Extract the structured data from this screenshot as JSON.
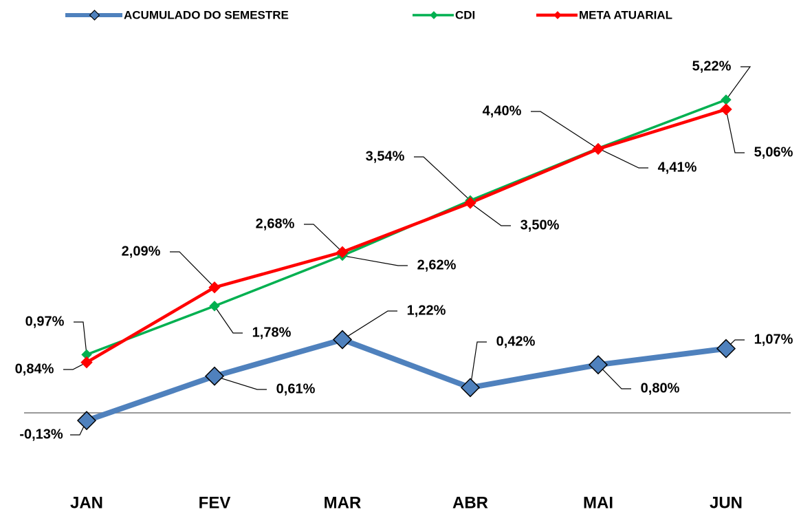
{
  "chart_data": {
    "type": "line",
    "categories": [
      "JAN",
      "FEV",
      "MAR",
      "ABR",
      "MAI",
      "JUN"
    ],
    "series": [
      {
        "name": "ACUMULADO DO SEMESTRE",
        "color": "#4f81bd",
        "values": [
          -0.13,
          0.61,
          1.22,
          0.42,
          0.8,
          1.07
        ],
        "value_labels": [
          "-0,13%",
          "0,61%",
          "1,22%",
          "0,42%",
          "0,80%",
          "1,07%"
        ]
      },
      {
        "name": "CDI",
        "color": "#00b050",
        "values": [
          0.97,
          1.78,
          2.62,
          3.54,
          4.41,
          5.22
        ],
        "value_labels": [
          "0,97%",
          "1,78%",
          "2,62%",
          "3,54%",
          "4,41%",
          "5,22%"
        ]
      },
      {
        "name": "META ATUARIAL",
        "color": "#ff0000",
        "values": [
          0.84,
          2.09,
          2.68,
          3.5,
          4.4,
          5.06
        ],
        "value_labels": [
          "0,84%",
          "2,09%",
          "2,68%",
          "3,50%",
          "4,40%",
          "5,06%"
        ]
      }
    ],
    "ylim": [
      -1,
      6
    ],
    "legend": "top"
  }
}
